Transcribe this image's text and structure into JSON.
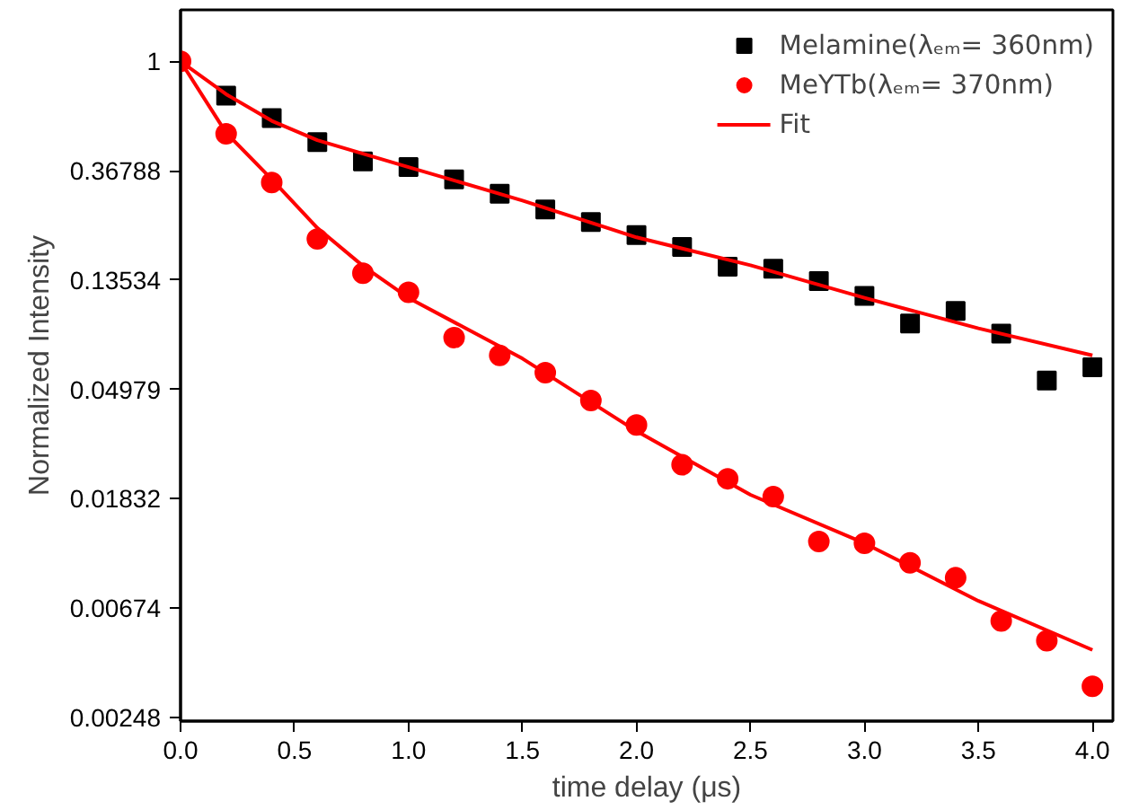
{
  "chart_data": {
    "type": "scatter",
    "xlabel": "time delay (μs)",
    "ylabel": "Normalized Intensity",
    "log": "y",
    "xlim": [
      0,
      4.09
    ],
    "ylim": [
      0.0024,
      1.6
    ],
    "xticks": [
      {
        "value": 0,
        "label": "0.0"
      },
      {
        "value": 0.5,
        "label": "0.5"
      },
      {
        "value": 1,
        "label": "1.0"
      },
      {
        "value": 1.5,
        "label": "1.5"
      },
      {
        "value": 2,
        "label": "2.0"
      },
      {
        "value": 2.5,
        "label": "2.5"
      },
      {
        "value": 3,
        "label": "3.0"
      },
      {
        "value": 3.5,
        "label": "3.5"
      },
      {
        "value": 4,
        "label": "4.0"
      }
    ],
    "yticks": [
      1,
      0.36788,
      0.13534,
      0.04979,
      0.01832,
      0.00674,
      0.00248
    ],
    "legend": "top right",
    "grid": false,
    "series": [
      {
        "name": "Melamine(λₑₘ= 360nm)",
        "marker": "square",
        "color": "#000000",
        "x": [
          0.2,
          0.4,
          0.6,
          0.8,
          1.0,
          1.2,
          1.4,
          1.6,
          1.8,
          2.0,
          2.2,
          2.4,
          2.6,
          2.8,
          3.0,
          3.2,
          3.4,
          3.6,
          3.8,
          4.0
        ],
        "values": [
          0.73,
          0.595,
          0.478,
          0.4,
          0.38,
          0.34,
          0.298,
          0.258,
          0.23,
          0.204,
          0.183,
          0.153,
          0.15,
          0.134,
          0.117,
          0.091,
          0.102,
          0.083,
          0.054,
          0.061
        ]
      },
      {
        "name": "MeYTb(λₑₘ= 370nm)",
        "marker": "circle",
        "color": "#ff0000",
        "x": [
          0,
          0.2,
          0.4,
          0.6,
          0.8,
          1.0,
          1.2,
          1.4,
          1.6,
          1.8,
          2.0,
          2.2,
          2.4,
          2.6,
          2.8,
          3.0,
          3.2,
          3.4,
          3.6,
          3.8,
          4.0
        ],
        "values": [
          1,
          0.515,
          0.33,
          0.197,
          0.144,
          0.121,
          0.08,
          0.068,
          0.058,
          0.045,
          0.036,
          0.025,
          0.022,
          0.0187,
          0.0124,
          0.0122,
          0.0102,
          0.0089,
          0.006,
          0.005,
          0.0033
        ]
      },
      {
        "name": "Fit",
        "type": "line",
        "marker": "none",
        "line_style": "solid",
        "color": "#ff0000",
        "x": [
          0,
          0.2,
          0.4,
          0.6,
          1.0,
          1.5,
          2.0,
          2.5,
          3.0,
          3.5,
          4.0
        ],
        "values": [
          1,
          0.74,
          0.58,
          0.486,
          0.38,
          0.28,
          0.2,
          0.155,
          0.115,
          0.087,
          0.068
        ]
      },
      {
        "type": "line",
        "marker": "none",
        "line_style": "solid",
        "color": "#ff0000",
        "x": [
          0,
          0.2,
          0.4,
          0.6,
          0.8,
          1.0,
          1.5,
          2.0,
          2.5,
          3.0,
          3.5,
          4.0
        ],
        "values": [
          1,
          0.52,
          0.34,
          0.218,
          0.154,
          0.115,
          0.066,
          0.034,
          0.019,
          0.0122,
          0.0072,
          0.0046
        ]
      }
    ]
  }
}
